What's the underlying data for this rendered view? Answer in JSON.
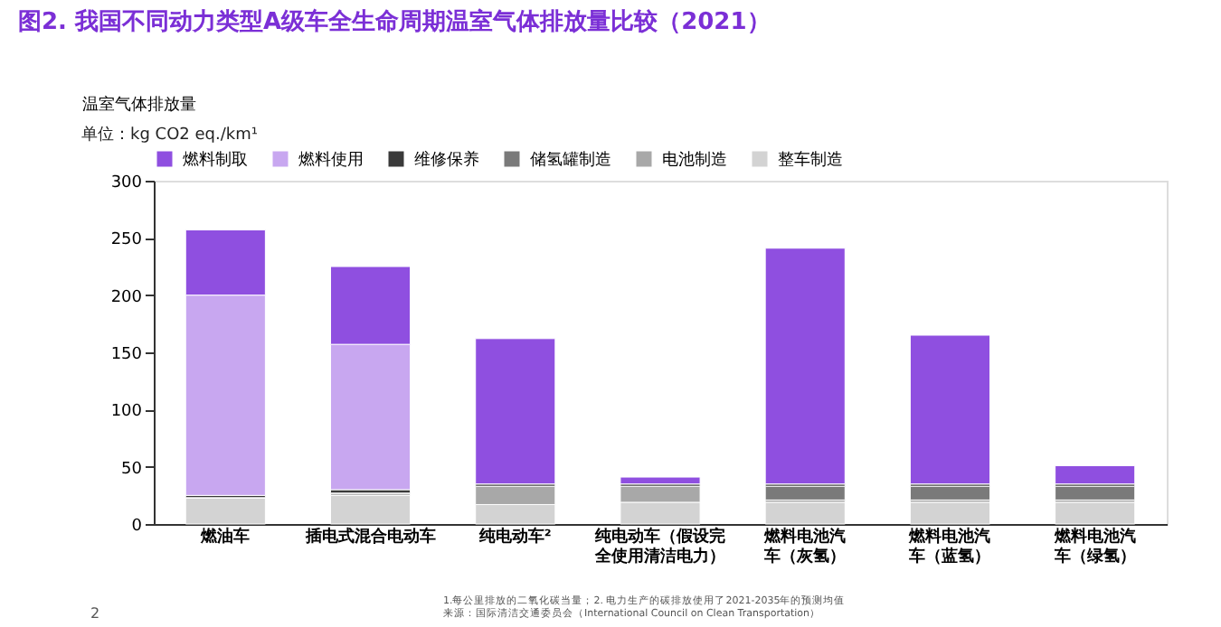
{
  "chart_data": {
    "type": "bar",
    "stacked": true,
    "title": "图2. 我国不同动力类型A级车全生命周期温室气体排放量比较（2021）",
    "ylabel": "温室气体排放量",
    "categories": [
      "燃油车",
      "插电式混合电动车",
      "纯电动车²",
      "纯电动车（假设完全使用清洁电力）",
      "燃料电池汽车（灰氢）",
      "燃料电池汽车（蓝氢）",
      "燃料电池汽车（绿氢）"
    ],
    "series": [
      {
        "name": "整车制造",
        "color": "#d3d3d3",
        "values": [
          23,
          25,
          17,
          19,
          19,
          19,
          19
        ]
      },
      {
        "name": "电池制造",
        "color": "#a8a8a8",
        "values": [
          0,
          2,
          16,
          14,
          2,
          2,
          2
        ]
      },
      {
        "name": "储氢罐制造",
        "color": "#7a7a7a",
        "values": [
          0,
          0,
          0,
          0,
          12,
          12,
          12
        ]
      },
      {
        "name": "维修保养",
        "color": "#3a3a3a",
        "values": [
          2,
          3,
          2,
          2,
          2,
          2,
          2
        ]
      },
      {
        "name": "燃料使用",
        "color": "#c8a7f0",
        "values": [
          175,
          127,
          0,
          0,
          0,
          0,
          0
        ]
      },
      {
        "name": "燃料制取",
        "color": "#8f4fe0",
        "values": [
          57,
          68,
          127,
          6,
          206,
          130,
          16
        ]
      }
    ],
    "ylim": [
      0,
      300
    ],
    "yticks": [
      0,
      50,
      100,
      150,
      200,
      250,
      300
    ],
    "grid": false,
    "legend": "top",
    "annotations": [
      "单位：kg CO2 eq./km¹",
      "1.每公里排放的二氧化碳当量；2. 电力生产的碳排放使用了2021-2035年的预测均值",
      "来源：国际清洁交通委员会（International Council on Clean Transportation）",
      "2"
    ]
  }
}
